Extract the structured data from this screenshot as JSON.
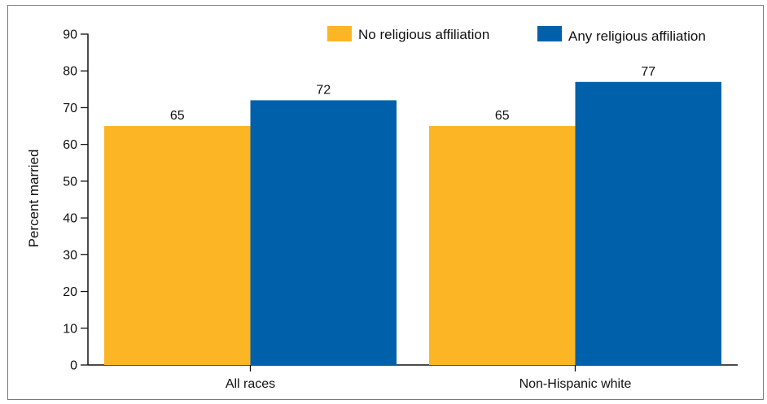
{
  "chart_data": {
    "type": "bar",
    "title": "",
    "xlabel": "",
    "ylabel": "Percent married",
    "ylim": [
      0,
      90
    ],
    "yticks": [
      0,
      10,
      20,
      30,
      40,
      50,
      60,
      70,
      80,
      90
    ],
    "categories": [
      "All races",
      "Non-Hispanic white"
    ],
    "series": [
      {
        "name": "No religious affiliation",
        "values": [
          65,
          65
        ],
        "color": "#fbb525"
      },
      {
        "name": "Any religious affiliation",
        "values": [
          72,
          77
        ],
        "color": "#0060a9"
      }
    ],
    "legend_position": "top-right",
    "grid": false,
    "data_labels": true
  }
}
